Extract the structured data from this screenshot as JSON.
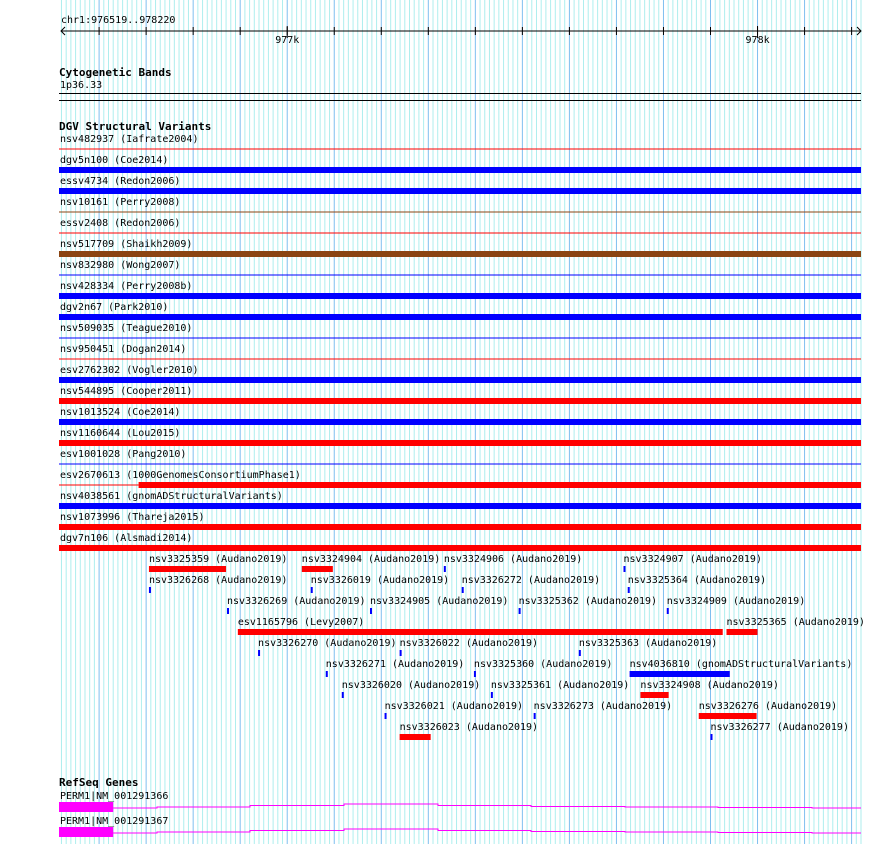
{
  "view": {
    "chrom": "chr1",
    "start": 976519,
    "end": 978220,
    "label": "chr1:976519..978220"
  },
  "ruler": {
    "major": [
      {
        "bp": 977000,
        "label": "977k"
      },
      {
        "bp": 978000,
        "label": "978k"
      }
    ]
  },
  "colors": {
    "red": "#ff0000",
    "blue": "#0000ff",
    "brown": "#8b4513",
    "magenta": "#ff00ff",
    "grid_minor": "#aeeeee",
    "grid_major": "#7fbfef"
  },
  "cytobands": {
    "title": "Cytogenetic Bands",
    "band": "1p36.33"
  },
  "dgv": {
    "title": "DGV Structural Variants",
    "rows": [
      {
        "label": "nsv482937 (Iafrate2004)",
        "color": "red",
        "style": "thin"
      },
      {
        "label": "dgv5n100 (Coe2014)",
        "color": "blue",
        "style": "thick"
      },
      {
        "label": "essv4734 (Redon2006)",
        "color": "blue",
        "style": "thick"
      },
      {
        "label": "nsv10161 (Perry2008)",
        "color": "brown",
        "style": "thin"
      },
      {
        "label": "essv2408 (Redon2006)",
        "color": "red",
        "style": "thin"
      },
      {
        "label": "nsv517709 (Shaikh2009)",
        "color": "brown",
        "style": "thick"
      },
      {
        "label": "nsv832980 (Wong2007)",
        "color": "blue",
        "style": "thin"
      },
      {
        "label": "nsv428334 (Perry2008b)",
        "color": "blue",
        "style": "thick"
      },
      {
        "label": "dgv2n67 (Park2010)",
        "color": "blue",
        "style": "thick"
      },
      {
        "label": "nsv509035 (Teague2010)",
        "color": "blue",
        "style": "thin"
      },
      {
        "label": "nsv950451 (Dogan2014)",
        "color": "red",
        "style": "thin"
      },
      {
        "label": "esv2762302 (Vogler2010)",
        "color": "blue",
        "style": "thick"
      },
      {
        "label": "nsv544895 (Cooper2011)",
        "color": "red",
        "style": "thick"
      },
      {
        "label": "nsv1013524 (Coe2014)",
        "color": "blue",
        "style": "thick"
      },
      {
        "label": "nsv1160644 (Lou2015)",
        "color": "red",
        "style": "thick"
      },
      {
        "label": "esv1001028 (Pang2010)",
        "color": "blue",
        "style": "thin"
      },
      {
        "label": "esv2670613 (1000GenomesConsortiumPhase1)",
        "color": "red",
        "style": "split",
        "thick_start": 976684
      },
      {
        "label": "nsv4038561 (gnomADStructuralVariants)",
        "color": "blue",
        "style": "thick"
      },
      {
        "label": "nsv1073996 (Thareja2015)",
        "color": "red",
        "style": "thick"
      },
      {
        "label": "dgv7n106 (Alsmadi2014)",
        "color": "red",
        "style": "thick"
      }
    ],
    "packed": [
      {
        "row": 0,
        "label": "nsv3325359 (Audano2019)",
        "start": 976706,
        "end": 976870,
        "color": "red"
      },
      {
        "row": 0,
        "label": "nsv3324904 (Audano2019)",
        "start": 977031,
        "end": 977097,
        "color": "red"
      },
      {
        "row": 0,
        "label": "nsv3324906 (Audano2019)",
        "start": 977333,
        "end": 977337,
        "color": "blue"
      },
      {
        "row": 0,
        "label": "nsv3324907 (Audano2019)",
        "start": 977715,
        "end": 977719,
        "color": "blue"
      },
      {
        "row": 1,
        "label": "nsv3326268 (Audano2019)",
        "start": 976706,
        "end": 976710,
        "color": "blue"
      },
      {
        "row": 1,
        "label": "nsv3326019 (Audano2019)",
        "start": 977050,
        "end": 977054,
        "color": "blue"
      },
      {
        "row": 1,
        "label": "nsv3326272 (Audano2019)",
        "start": 977371,
        "end": 977375,
        "color": "blue"
      },
      {
        "row": 1,
        "label": "nsv3325364 (Audano2019)",
        "start": 977724,
        "end": 977728,
        "color": "blue"
      },
      {
        "row": 2,
        "label": "nsv3326269 (Audano2019)",
        "start": 976872,
        "end": 976876,
        "color": "blue"
      },
      {
        "row": 2,
        "label": "nsv3324905 (Audano2019)",
        "start": 977176,
        "end": 977180,
        "color": "blue"
      },
      {
        "row": 2,
        "label": "nsv3325362 (Audano2019)",
        "start": 977492,
        "end": 977496,
        "color": "blue"
      },
      {
        "row": 2,
        "label": "nsv3324909 (Audano2019)",
        "start": 977807,
        "end": 977811,
        "color": "blue"
      },
      {
        "row": 3,
        "label": "esv1165796 (Levy2007)",
        "start": 976895,
        "end": 977926,
        "color": "red"
      },
      {
        "row": 3,
        "label": "nsv3325365 (Audano2019)",
        "start": 977934,
        "end": 978000,
        "color": "red"
      },
      {
        "row": 4,
        "label": "nsv3326270 (Audano2019)",
        "start": 976938,
        "end": 976942,
        "color": "blue"
      },
      {
        "row": 4,
        "label": "nsv3326022 (Audano2019)",
        "start": 977239,
        "end": 977243,
        "color": "blue"
      },
      {
        "row": 4,
        "label": "nsv3325363 (Audano2019)",
        "start": 977620,
        "end": 977624,
        "color": "blue"
      },
      {
        "row": 5,
        "label": "nsv3326271 (Audano2019)",
        "start": 977082,
        "end": 977086,
        "color": "blue"
      },
      {
        "row": 5,
        "label": "nsv3325360 (Audano2019)",
        "start": 977397,
        "end": 977401,
        "color": "blue"
      },
      {
        "row": 5,
        "label": "nsv4036810 (gnomADStructuralVariants)",
        "start": 977728,
        "end": 977941,
        "color": "blue"
      },
      {
        "row": 6,
        "label": "nsv3326020 (Audano2019)",
        "start": 977116,
        "end": 977120,
        "color": "blue"
      },
      {
        "row": 6,
        "label": "nsv3325361 (Audano2019)",
        "start": 977433,
        "end": 977437,
        "color": "blue"
      },
      {
        "row": 6,
        "label": "nsv3324908 (Audano2019)",
        "start": 977751,
        "end": 977811,
        "color": "red"
      },
      {
        "row": 7,
        "label": "nsv3326021 (Audano2019)",
        "start": 977207,
        "end": 977211,
        "color": "blue"
      },
      {
        "row": 7,
        "label": "nsv3326273 (Audano2019)",
        "start": 977524,
        "end": 977528,
        "color": "blue"
      },
      {
        "row": 7,
        "label": "nsv3326276 (Audano2019)",
        "start": 977875,
        "end": 977998,
        "color": "red"
      },
      {
        "row": 8,
        "label": "nsv3326023 (Audano2019)",
        "start": 977239,
        "end": 977305,
        "color": "red"
      },
      {
        "row": 8,
        "label": "nsv3326277 (Audano2019)",
        "start": 977900,
        "end": 977904,
        "color": "blue"
      }
    ]
  },
  "refseq": {
    "title": "RefSeq Genes",
    "genes": [
      {
        "label": "PERM1|NM_001291366",
        "thick_end": 976630
      },
      {
        "label": "PERM1|NM_001291367",
        "thick_end": 976630
      }
    ]
  }
}
